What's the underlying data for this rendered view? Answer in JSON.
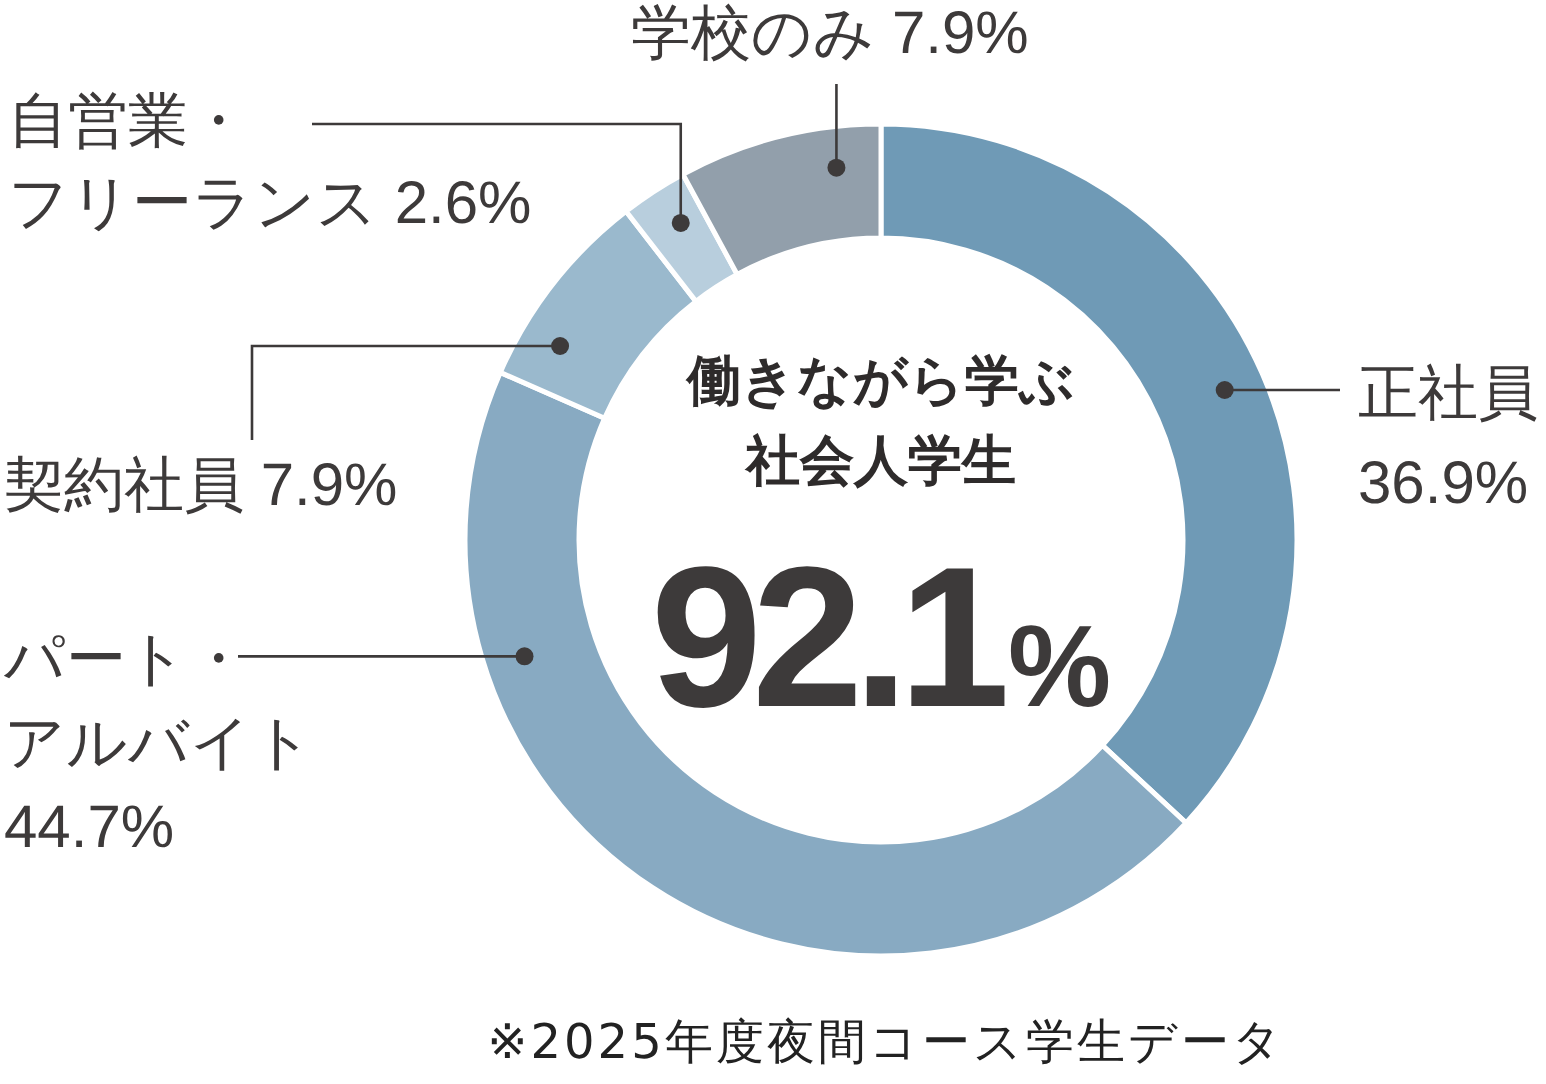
{
  "chart_data": {
    "type": "donut",
    "categories": [
      "正社員",
      "パート・アルバイト",
      "契約社員",
      "自営業・フリーランス",
      "学校のみ"
    ],
    "values": [
      36.9,
      44.7,
      7.9,
      2.6,
      7.9
    ],
    "value_labels": [
      "36.9%",
      "44.7%",
      "7.9%",
      "2.6%",
      "7.9%"
    ],
    "colors": [
      "#6f9ab6",
      "#88aac2",
      "#9ab9cd",
      "#b8cedd",
      "#929fab"
    ],
    "annotations": [
      "働きながら学ぶ",
      "社会人学生",
      "92.1%",
      "※2025年度夜間コース学生データ"
    ]
  }
}
